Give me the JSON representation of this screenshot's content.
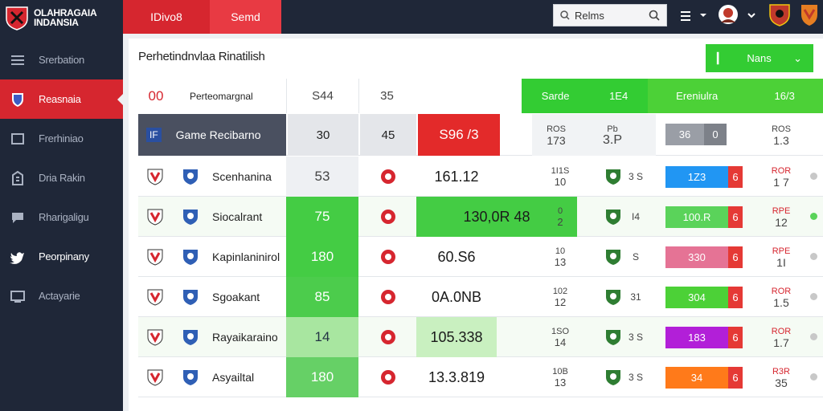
{
  "brand": {
    "line1": "OLAHRAGAIA",
    "line2": "INDANSIA"
  },
  "topbar": {
    "tab1": "IDivo8",
    "tab2": "Semd",
    "search_text": "Relms"
  },
  "sidebar": {
    "items": [
      {
        "label": "Srerbation",
        "icon": "menu-icon"
      },
      {
        "label": "Reasnaia",
        "icon": "shield-icon"
      },
      {
        "label": "Frerhiniao",
        "icon": "square-icon"
      },
      {
        "label": "Dria Rakin",
        "icon": "building-icon"
      },
      {
        "label": "Rharigaligu",
        "icon": "chat-icon"
      },
      {
        "label": "Peorpinany",
        "icon": "twitter-icon"
      },
      {
        "label": "Actayarie",
        "icon": "board-icon"
      }
    ]
  },
  "panel": {
    "title": "Perhetindnvlaa Rinatilish",
    "menu_label": "Nans"
  },
  "header_row": {
    "num": "00",
    "name": "Perteomargnal",
    "a": "S44",
    "b": "35",
    "green1": "Sarde",
    "green1b": "1E4",
    "green2": "Ereniulra",
    "green2b": "16/3"
  },
  "sub_row": {
    "code": "IF",
    "name": "Game Recibarno",
    "a": "30",
    "b": "45",
    "red": "S96 /3",
    "c1": "ROS",
    "c2": "173",
    "c3": "Pb",
    "c4": "3.P",
    "pill": "36",
    "pill2": "0",
    "r1": "ROS",
    "r2": "1.3"
  },
  "rows": [
    {
      "name": "Scenhanina",
      "val": "53",
      "score": "161.12",
      "s1": "1I1S",
      "s2": "10",
      "n": "3 S",
      "f1": "ROR",
      "f2": "1 7",
      "pill": "1Z3",
      "color": "#2196f3",
      "hl": false
    },
    {
      "name": "Siocalrant",
      "val": "75",
      "score": "130,0R 48",
      "s1": "0",
      "s2": "2",
      "n": "I4",
      "f1": "RPE",
      "f2": "12",
      "pill": "100.R",
      "color": "#5ad35a",
      "hl": true
    },
    {
      "name": "Kapinlaninirol",
      "val": "180",
      "score": "60.S6",
      "s1": "10",
      "s2": "13",
      "n": "S",
      "f1": "RPE",
      "f2": "1I",
      "pill": "330",
      "color": "#e57395",
      "hl": false
    },
    {
      "name": "Sgoakant",
      "val": "85",
      "score": "0A.0NB",
      "s1": "102",
      "s2": "12",
      "n": "31",
      "f1": "ROR",
      "f2": "1.5",
      "pill": "304",
      "color": "#4cd137",
      "hl": false
    },
    {
      "name": "Rayaikaraino",
      "val": "14",
      "score": "105.338",
      "s1": "1SO",
      "s2": "14",
      "n": "3 S",
      "f1": "ROR",
      "f2": "1.7",
      "pill": "183",
      "color": "#b21fd8",
      "hl": true
    },
    {
      "name": "Asyailtal",
      "val": "180",
      "score": "13.3.819",
      "s1": "10B",
      "s2": "13",
      "n": "3 S",
      "f1": "R3R",
      "f2": "35",
      "pill": "34",
      "color": "#ff7a1a",
      "hl": false
    }
  ]
}
